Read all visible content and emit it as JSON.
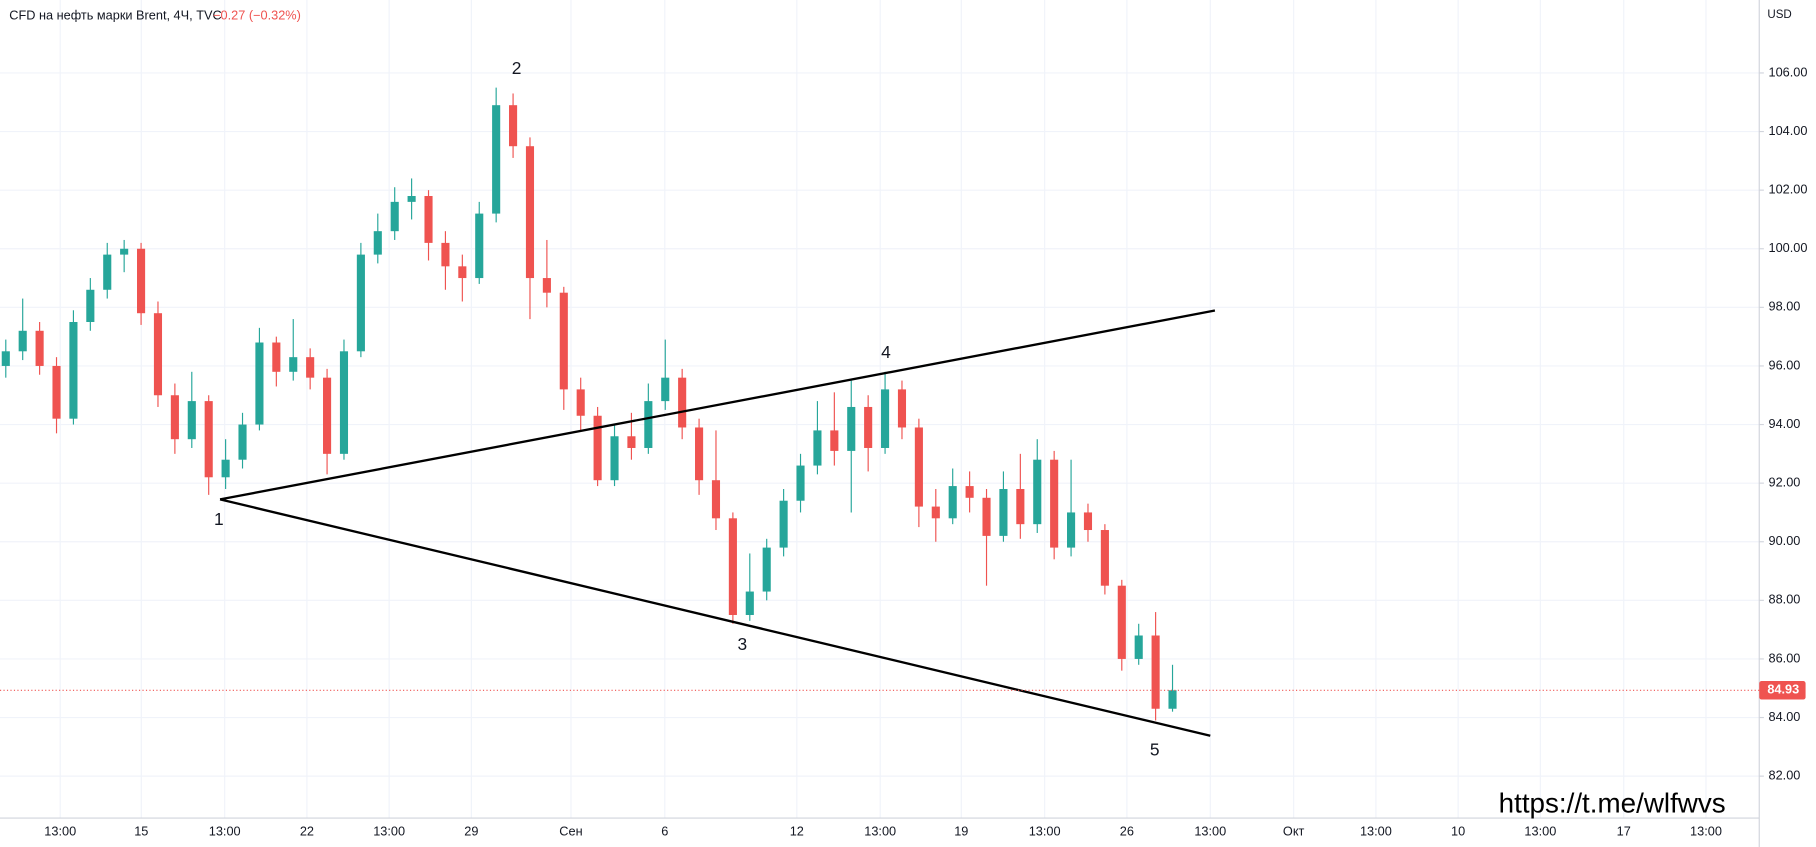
{
  "chart_data": {
    "type": "candlestick",
    "title": "CFD на нефть марки Brent, 4Ч, TVC",
    "change": "−0.27 (−0.32%)",
    "currency": "USD",
    "watermark": "https://t.me/wlfwvs",
    "annotations": [
      "1",
      "2",
      "3",
      "4",
      "5"
    ],
    "last_price": 84.93,
    "up_color": "#26a69a",
    "down_color": "#ef5350",
    "grid": true,
    "ylim": [
      80.57,
      108.49
    ],
    "yticks": [
      {
        "value": 82,
        "label": "82.00"
      },
      {
        "value": 84,
        "label": "84.00"
      },
      {
        "value": 86,
        "label": "86.00"
      },
      {
        "value": 88,
        "label": "88.00"
      },
      {
        "value": 90,
        "label": "90.00"
      },
      {
        "value": 92,
        "label": "92.00"
      },
      {
        "value": 94,
        "label": "94.00"
      },
      {
        "value": 96,
        "label": "96.00"
      },
      {
        "value": 98,
        "label": "98.00"
      },
      {
        "value": 100,
        "label": "100.00"
      },
      {
        "value": 102,
        "label": "102.00"
      },
      {
        "value": 104,
        "label": "104.00"
      },
      {
        "value": 106,
        "label": "106.00"
      }
    ],
    "time_labels": [
      "13:00",
      "15",
      "13:00",
      "22",
      "13:00",
      "29",
      "Сен",
      "6",
      "12",
      "13:00",
      "19",
      "13:00",
      "26",
      "13:00",
      "Окт",
      "13:00",
      "10",
      "13:00",
      "17",
      "13:00"
    ],
    "open": [
      96.0,
      96.5,
      97.2,
      96.0,
      94.2,
      97.5,
      98.6,
      99.8,
      100.0,
      97.8,
      95.0,
      93.5,
      94.8,
      92.2,
      92.8,
      94.0,
      96.8,
      95.8,
      96.3,
      95.6,
      93.0,
      96.5,
      99.8,
      100.6,
      101.6,
      101.8,
      100.2,
      99.4,
      99.0,
      101.2,
      104.9,
      103.5,
      99.0,
      98.5,
      95.2,
      94.3,
      92.1,
      93.6,
      93.2,
      94.8,
      95.6,
      93.9,
      92.1,
      90.8,
      87.5,
      88.3,
      89.8,
      91.4,
      92.6,
      93.8,
      93.1,
      94.6,
      93.2,
      95.2,
      93.9,
      91.2,
      90.8,
      91.9,
      91.5,
      90.2,
      91.8,
      90.6,
      92.8,
      89.8,
      91.0,
      90.4,
      88.5,
      86.0,
      86.8,
      84.3
    ],
    "high": [
      96.9,
      98.3,
      97.5,
      96.3,
      97.9,
      99.0,
      100.2,
      100.3,
      100.2,
      98.2,
      95.4,
      95.8,
      95.0,
      93.5,
      94.4,
      97.3,
      97.0,
      97.6,
      96.6,
      95.9,
      96.9,
      100.2,
      101.2,
      102.1,
      102.4,
      102.0,
      100.6,
      99.8,
      101.6,
      105.5,
      105.3,
      103.8,
      100.3,
      98.7,
      95.6,
      94.6,
      94.0,
      94.4,
      95.4,
      96.9,
      95.9,
      94.2,
      93.8,
      91.0,
      89.6,
      90.1,
      91.8,
      93.0,
      94.8,
      95.1,
      95.5,
      95.0,
      95.8,
      95.5,
      94.2,
      91.8,
      92.5,
      92.4,
      91.8,
      92.4,
      93.0,
      93.5,
      93.1,
      92.8,
      91.3,
      90.6,
      88.7,
      87.2,
      87.6,
      85.8
    ],
    "low": [
      95.6,
      96.2,
      95.7,
      93.7,
      94.0,
      97.2,
      98.3,
      99.2,
      97.4,
      94.6,
      93.0,
      93.2,
      91.6,
      91.8,
      92.5,
      93.8,
      95.3,
      95.5,
      95.2,
      92.3,
      92.8,
      96.3,
      99.5,
      100.3,
      101.0,
      99.6,
      98.6,
      98.2,
      98.8,
      100.9,
      103.1,
      97.6,
      98.0,
      94.5,
      93.8,
      91.9,
      91.9,
      92.8,
      93.0,
      94.5,
      93.5,
      91.6,
      90.4,
      87.2,
      87.3,
      88.0,
      89.5,
      91.0,
      92.3,
      92.6,
      91.0,
      92.4,
      93.0,
      93.5,
      90.5,
      90.0,
      90.6,
      91.0,
      88.5,
      90.0,
      90.1,
      90.3,
      89.4,
      89.5,
      90.0,
      88.2,
      85.6,
      85.8,
      83.9,
      84.2
    ],
    "close": [
      96.5,
      97.2,
      96.0,
      94.2,
      97.5,
      98.6,
      99.8,
      100.0,
      97.8,
      95.0,
      93.5,
      94.8,
      92.2,
      92.8,
      94.0,
      96.8,
      95.8,
      96.3,
      95.6,
      93.0,
      96.5,
      99.8,
      100.6,
      101.6,
      101.8,
      100.2,
      99.4,
      99.0,
      101.2,
      104.9,
      103.5,
      99.0,
      98.5,
      95.2,
      94.3,
      92.1,
      93.6,
      93.2,
      94.8,
      95.6,
      93.9,
      92.1,
      90.8,
      87.5,
      88.3,
      89.8,
      91.4,
      92.6,
      93.8,
      93.1,
      94.6,
      93.2,
      95.2,
      93.9,
      91.2,
      90.8,
      91.9,
      91.5,
      90.2,
      91.8,
      90.6,
      92.8,
      89.8,
      91.0,
      90.4,
      88.5,
      86.0,
      86.8,
      84.3,
      84.93
    ]
  }
}
